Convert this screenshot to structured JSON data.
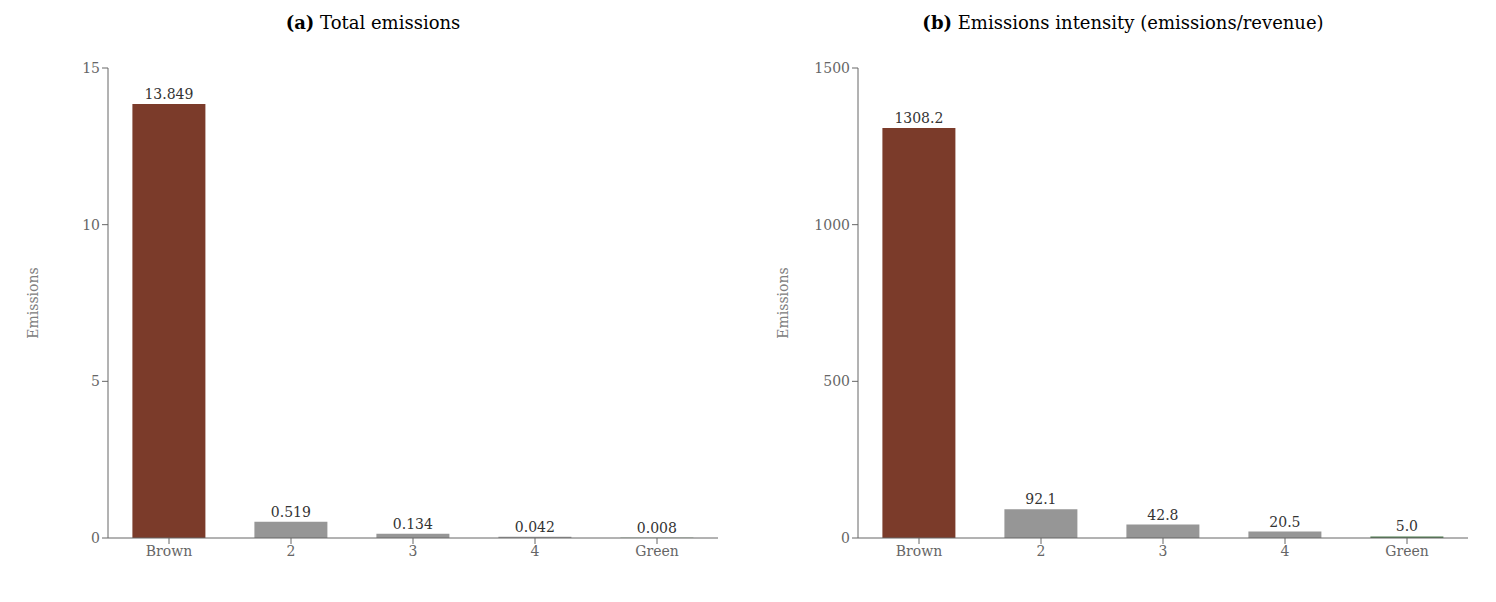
{
  "chart_data": [
    {
      "type": "bar",
      "title": "(a) Total emissions",
      "ylabel": "Emissions",
      "categories": [
        "Brown",
        "2",
        "3",
        "4",
        "Green"
      ],
      "values": [
        13.849,
        0.519,
        0.134,
        0.042,
        0.008
      ],
      "value_labels": [
        "13.849",
        "0.519",
        "0.134",
        "0.042",
        "0.008"
      ],
      "colors": [
        "#7B3B2A",
        "#969696",
        "#969696",
        "#969696",
        "#4C7A4C"
      ],
      "ylim": [
        0,
        15
      ],
      "yticks": [
        0,
        5,
        10,
        15
      ],
      "grid": false,
      "data_labels": true
    },
    {
      "type": "bar",
      "title": "(b) Emissions intensity (emissions/revenue)",
      "ylabel": "Emissions",
      "categories": [
        "Brown",
        "2",
        "3",
        "4",
        "Green"
      ],
      "values": [
        1308.2,
        92.1,
        42.8,
        20.5,
        5.0
      ],
      "value_labels": [
        "1308.2",
        "92.1",
        "42.8",
        "20.5",
        "5.0"
      ],
      "colors": [
        "#7B3B2A",
        "#969696",
        "#969696",
        "#969696",
        "#4C7A4C"
      ],
      "ylim": [
        0,
        1500
      ],
      "yticks": [
        0,
        500,
        1000,
        1500
      ],
      "grid": false,
      "data_labels": true
    }
  ]
}
